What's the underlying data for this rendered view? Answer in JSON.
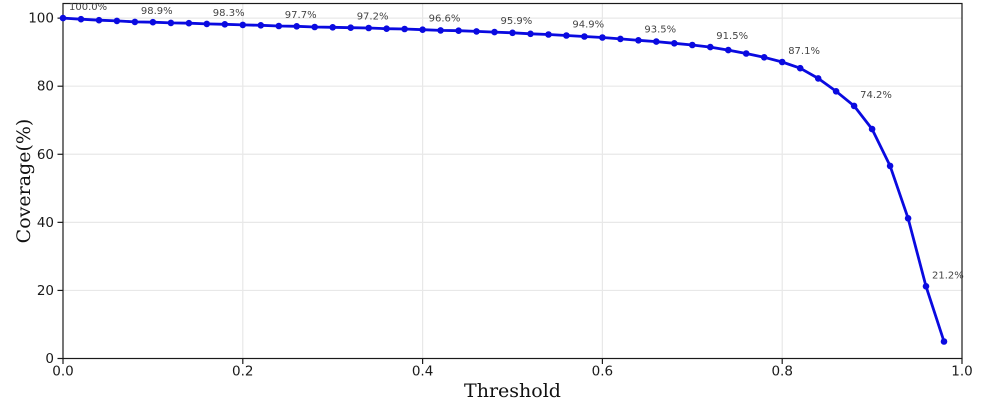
{
  "figure": {
    "background": "#ffffff"
  },
  "chart_data": {
    "type": "line",
    "title": "",
    "xlabel": "Threshold",
    "ylabel": "Coverage(%)",
    "series_name": "coverage",
    "x": [
      0.0,
      0.02,
      0.04,
      0.06,
      0.08,
      0.1,
      0.12,
      0.14,
      0.16,
      0.18,
      0.2,
      0.22,
      0.24,
      0.26,
      0.28,
      0.3,
      0.32,
      0.34,
      0.36,
      0.38,
      0.4,
      0.42,
      0.44,
      0.46,
      0.48,
      0.5,
      0.52,
      0.54,
      0.56,
      0.58,
      0.6,
      0.62,
      0.64,
      0.66,
      0.68,
      0.7,
      0.72,
      0.74,
      0.76,
      0.78,
      0.8,
      0.82,
      0.84,
      0.86,
      0.88,
      0.9,
      0.92,
      0.94,
      0.96,
      0.98
    ],
    "y": [
      100.0,
      99.7,
      99.4,
      99.2,
      98.9,
      98.8,
      98.6,
      98.5,
      98.3,
      98.2,
      98.0,
      97.9,
      97.7,
      97.6,
      97.4,
      97.3,
      97.2,
      97.1,
      96.9,
      96.8,
      96.6,
      96.4,
      96.3,
      96.1,
      95.9,
      95.7,
      95.4,
      95.2,
      94.9,
      94.6,
      94.3,
      93.9,
      93.5,
      93.1,
      92.6,
      92.1,
      91.5,
      90.6,
      89.6,
      88.5,
      87.1,
      85.3,
      82.3,
      78.5,
      74.2,
      67.4,
      56.6,
      41.2,
      21.2,
      5.0
    ],
    "annotations": [
      {
        "index": 0,
        "label": "100.0%"
      },
      {
        "index": 4,
        "label": "98.9%"
      },
      {
        "index": 8,
        "label": "98.3%"
      },
      {
        "index": 12,
        "label": "97.7%"
      },
      {
        "index": 16,
        "label": "97.2%"
      },
      {
        "index": 20,
        "label": "96.6%"
      },
      {
        "index": 24,
        "label": "95.9%"
      },
      {
        "index": 28,
        "label": "94.9%"
      },
      {
        "index": 32,
        "label": "93.5%"
      },
      {
        "index": 36,
        "label": "91.5%"
      },
      {
        "index": 40,
        "label": "87.1%"
      },
      {
        "index": 44,
        "label": "74.2%"
      },
      {
        "index": 48,
        "label": "21.2%"
      }
    ],
    "xticks": {
      "values": [
        0.0,
        0.2,
        0.4,
        0.6,
        0.8,
        1.0
      ],
      "labels": [
        "0.0",
        "0.2",
        "0.4",
        "0.6",
        "0.8",
        "1.0"
      ]
    },
    "yticks": {
      "values": [
        0,
        20,
        40,
        60,
        80,
        100
      ],
      "labels": [
        "0",
        "20",
        "40",
        "60",
        "80",
        "100"
      ]
    },
    "xlim": [
      0.0,
      1.0
    ],
    "ylim": [
      0,
      104.3
    ],
    "grid": true,
    "legend": "none",
    "marker": "o",
    "colors": {
      "line": "#0a0ae0",
      "marker": "#0a0ae0",
      "annotation": "#454545",
      "axis": "#1a1a1a",
      "grid": "#e8e8e8",
      "background": "#ffffff"
    }
  }
}
